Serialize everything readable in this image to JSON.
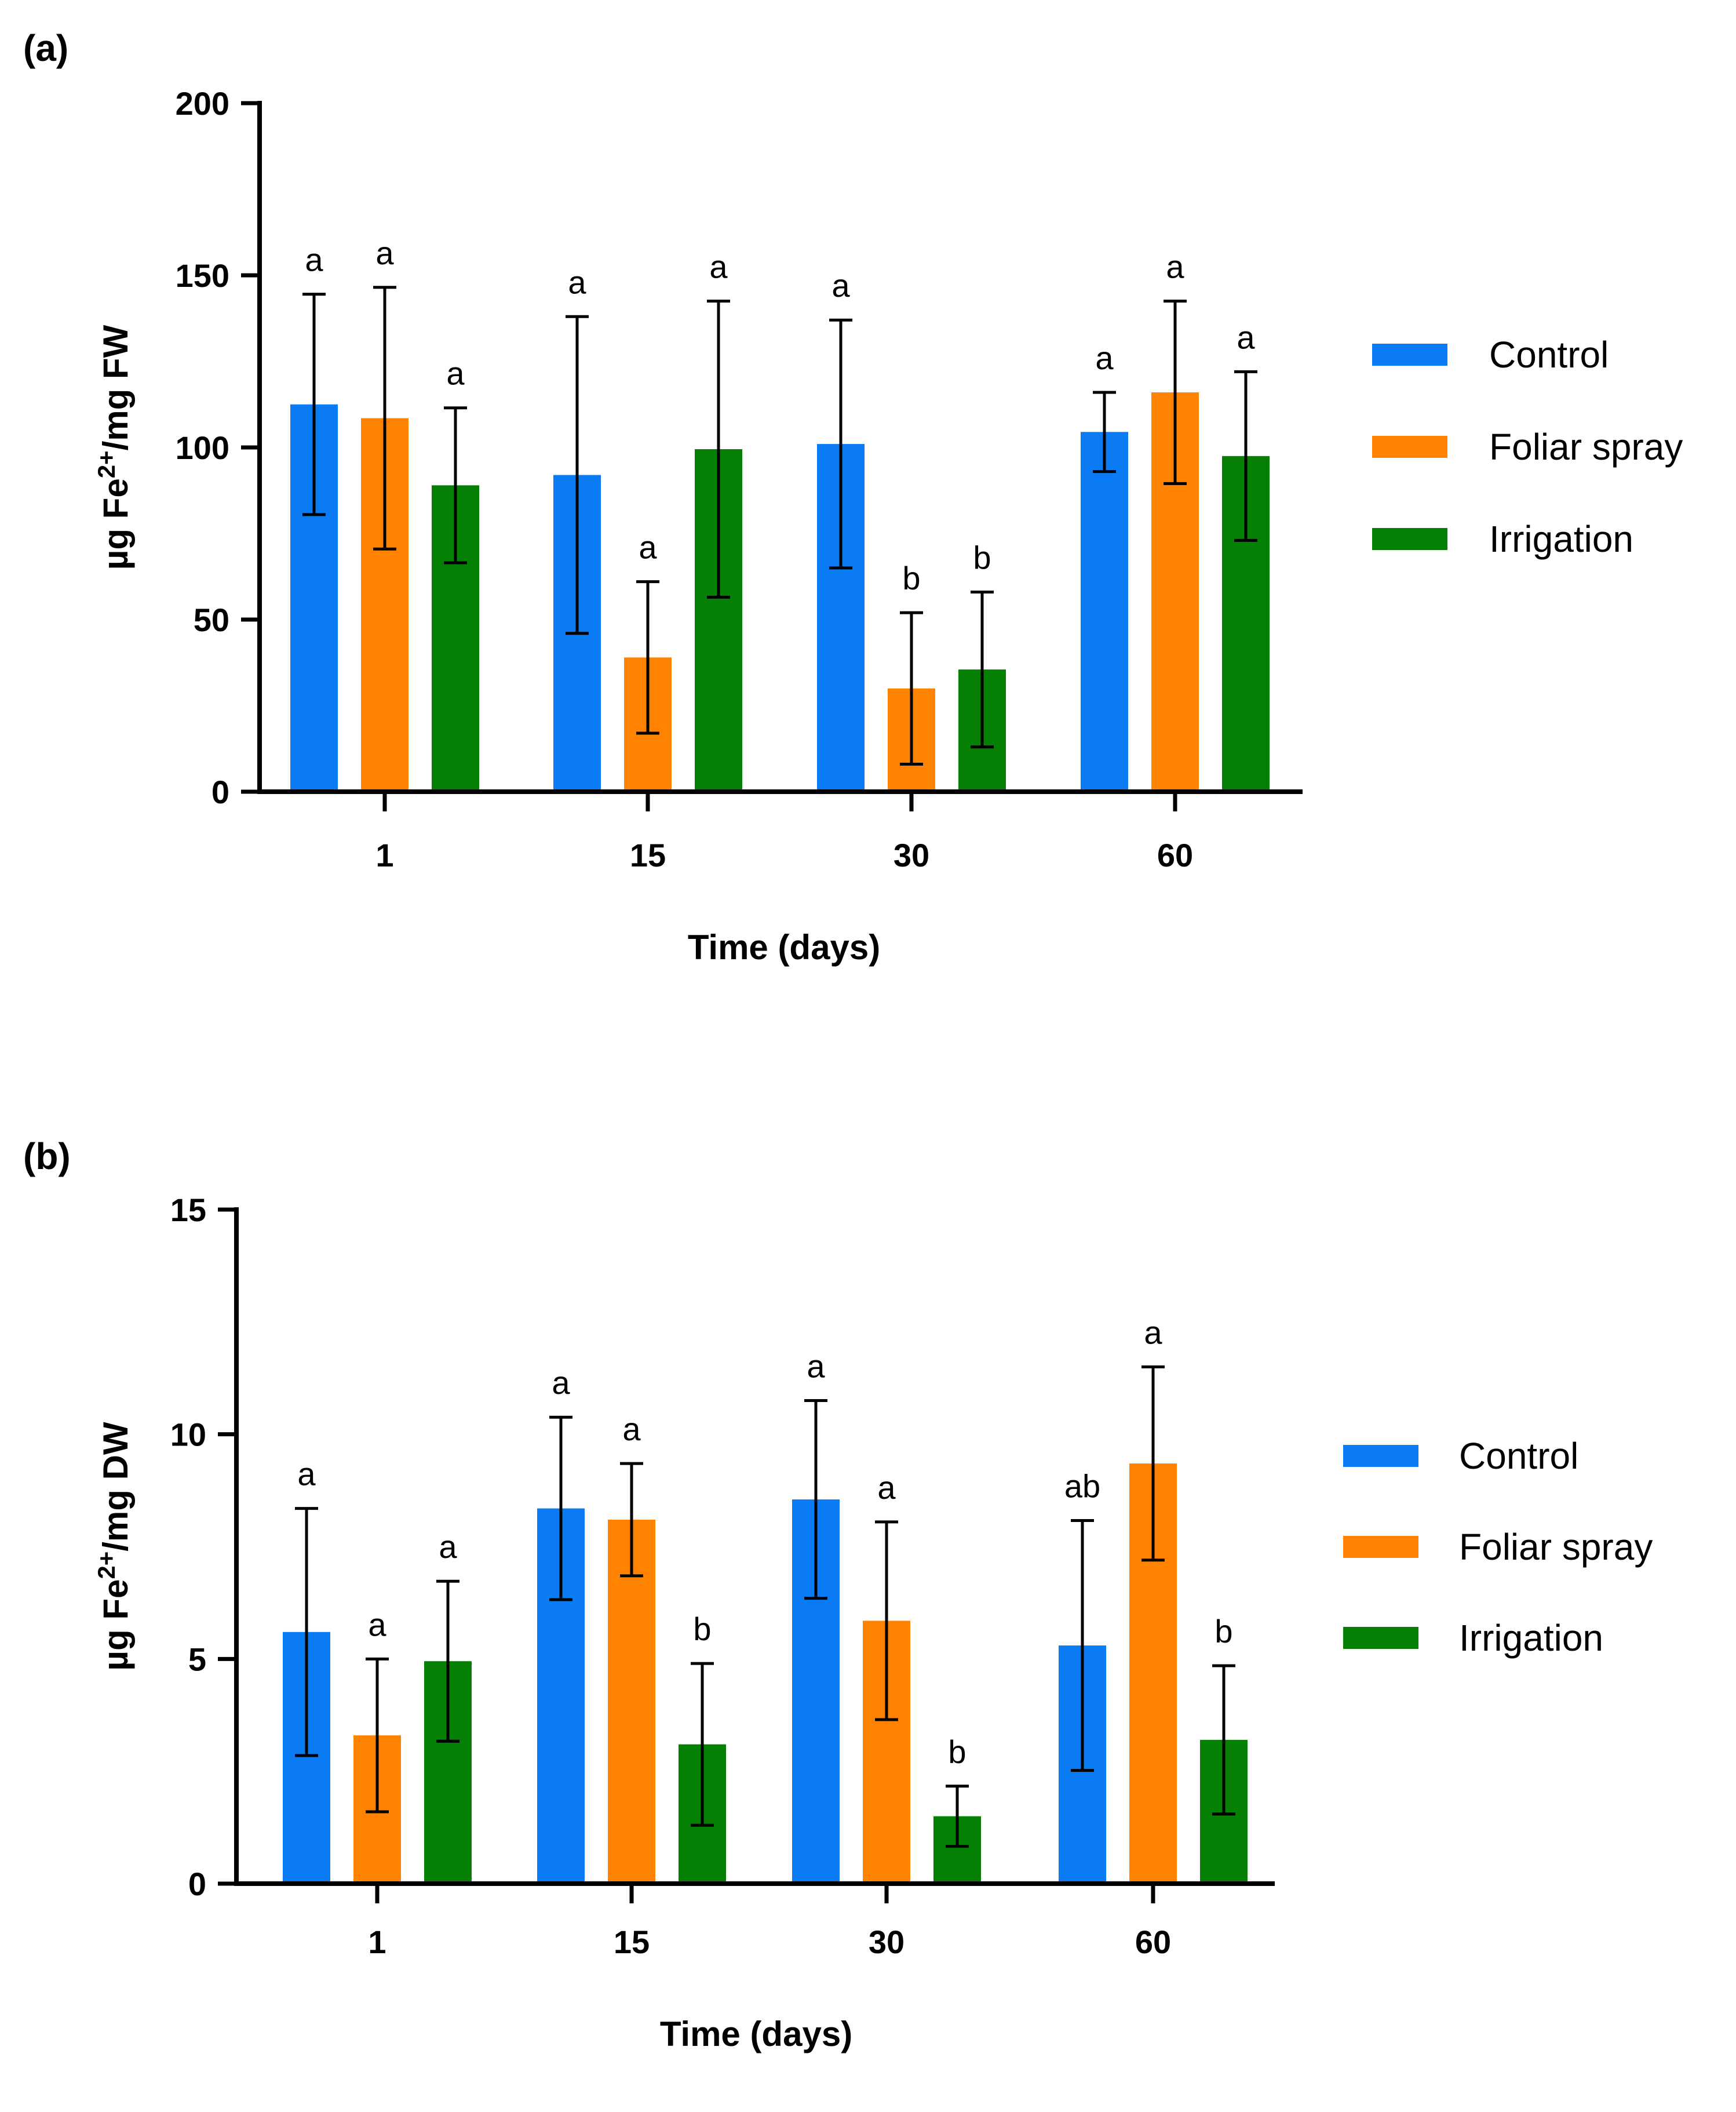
{
  "colors": {
    "Control": "#0A7BF2",
    "Foliar spray": "#FF8300",
    "Irrigation": "#058005"
  },
  "chart_data": [
    {
      "id": "a",
      "panel_label": "(a)",
      "type": "bar",
      "categories": [
        "1",
        "15",
        "30",
        "60"
      ],
      "xlabel": "Time (days)",
      "ylabel": {
        "pre": "µg Fe",
        "sup": "2+",
        "post": "/mg FW"
      },
      "ylim": [
        0,
        200
      ],
      "yticks": [
        0,
        50,
        100,
        150,
        200
      ],
      "legend_position": "right",
      "series": [
        {
          "name": "Control",
          "values": [
            112.5,
            92,
            101,
            104.5
          ],
          "errors": [
            32,
            46,
            36,
            11.5
          ],
          "sig": [
            "a",
            "a",
            "a",
            "a"
          ]
        },
        {
          "name": "Foliar spray",
          "values": [
            108.5,
            39,
            30,
            116
          ],
          "errors": [
            38,
            22,
            22,
            26.5
          ],
          "sig": [
            "a",
            "a",
            "b",
            "a"
          ]
        },
        {
          "name": "Irrigation",
          "values": [
            89,
            99.5,
            35.5,
            97.5
          ],
          "errors": [
            22.5,
            43,
            22.5,
            24.5
          ],
          "sig": [
            "a",
            "a",
            "b",
            "a"
          ]
        }
      ]
    },
    {
      "id": "b",
      "panel_label": "(b)",
      "type": "bar",
      "categories": [
        "1",
        "15",
        "30",
        "60"
      ],
      "xlabel": "Time (days)",
      "ylabel": {
        "pre": "µg Fe",
        "sup": "2+",
        "post": "/mg DW"
      },
      "ylim": [
        0,
        15
      ],
      "yticks": [
        0,
        5,
        10,
        15
      ],
      "legend_position": "right",
      "series": [
        {
          "name": "Control",
          "values": [
            5.6,
            8.35,
            8.55,
            5.3
          ],
          "errors": [
            2.75,
            2.03,
            2.2,
            2.78
          ],
          "sig": [
            "a",
            "a",
            "a",
            "ab"
          ]
        },
        {
          "name": "Foliar spray",
          "values": [
            3.3,
            8.1,
            5.85,
            9.35
          ],
          "errors": [
            1.7,
            1.25,
            2.2,
            2.15
          ],
          "sig": [
            "a",
            "a",
            "a",
            "a"
          ]
        },
        {
          "name": "Irrigation",
          "values": [
            4.95,
            3.1,
            1.5,
            3.2
          ],
          "errors": [
            1.78,
            1.8,
            0.67,
            1.65
          ],
          "sig": [
            "a",
            "b",
            "b",
            "b"
          ]
        }
      ]
    }
  ]
}
